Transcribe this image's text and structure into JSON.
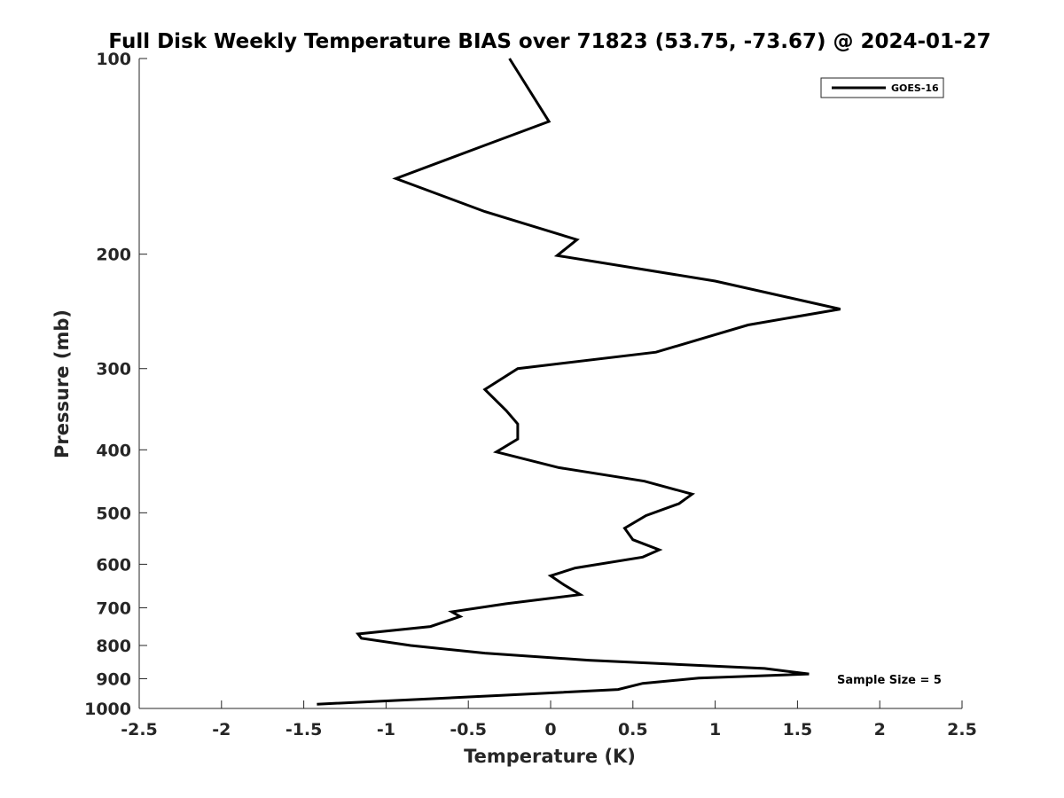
{
  "chart_data": {
    "type": "line",
    "title": "Full Disk Weekly Temperature BIAS over 71823 (53.75, -73.67) @ 2024-01-27",
    "xlabel": "Temperature (K)",
    "ylabel": "Pressure (mb)",
    "xlim": [
      -2.5,
      2.5
    ],
    "ylim": [
      100,
      1000
    ],
    "y_scale": "log",
    "y_reversed": true,
    "grid": false,
    "xticks": [
      -2.5,
      -2,
      -1.5,
      -1,
      -0.5,
      0,
      0.5,
      1,
      1.5,
      2,
      2.5
    ],
    "xtick_labels": [
      "-2.5",
      "-2",
      "-1.5",
      "-1",
      "-0.5",
      "0",
      "0.5",
      "1",
      "1.5",
      "2",
      "2.5"
    ],
    "yticks": [
      100,
      200,
      300,
      400,
      500,
      600,
      700,
      800,
      900,
      1000
    ],
    "ytick_labels": [
      "100",
      "200",
      "300",
      "400",
      "500",
      "600",
      "700",
      "800",
      "900",
      "1000"
    ],
    "legend_position": "top-right",
    "series": [
      {
        "name": "GOES-16",
        "color": "#000000",
        "points": [
          {
            "t": -0.25,
            "p": 100
          },
          {
            "t": -0.01,
            "p": 125
          },
          {
            "t": -0.4,
            "p": 136
          },
          {
            "t": -0.94,
            "p": 153
          },
          {
            "t": -0.4,
            "p": 172
          },
          {
            "t": 0.16,
            "p": 190
          },
          {
            "t": 0.04,
            "p": 201
          },
          {
            "t": 1.0,
            "p": 220
          },
          {
            "t": 1.76,
            "p": 243
          },
          {
            "t": 1.2,
            "p": 257
          },
          {
            "t": 0.64,
            "p": 283
          },
          {
            "t": -0.2,
            "p": 300
          },
          {
            "t": -0.4,
            "p": 323
          },
          {
            "t": -0.27,
            "p": 348
          },
          {
            "t": -0.2,
            "p": 365
          },
          {
            "t": -0.2,
            "p": 385
          },
          {
            "t": -0.33,
            "p": 403
          },
          {
            "t": 0.05,
            "p": 426
          },
          {
            "t": 0.57,
            "p": 447
          },
          {
            "t": 0.86,
            "p": 468
          },
          {
            "t": 0.78,
            "p": 484
          },
          {
            "t": 0.58,
            "p": 505
          },
          {
            "t": 0.45,
            "p": 528
          },
          {
            "t": 0.5,
            "p": 550
          },
          {
            "t": 0.66,
            "p": 570
          },
          {
            "t": 0.56,
            "p": 585
          },
          {
            "t": 0.15,
            "p": 608
          },
          {
            "t": 0.0,
            "p": 625
          },
          {
            "t": 0.08,
            "p": 645
          },
          {
            "t": 0.18,
            "p": 668
          },
          {
            "t": -0.27,
            "p": 690
          },
          {
            "t": -0.6,
            "p": 710
          },
          {
            "t": -0.55,
            "p": 722
          },
          {
            "t": -0.73,
            "p": 748
          },
          {
            "t": -1.17,
            "p": 768
          },
          {
            "t": -1.15,
            "p": 780
          },
          {
            "t": -0.85,
            "p": 800
          },
          {
            "t": -0.4,
            "p": 822
          },
          {
            "t": 0.23,
            "p": 843
          },
          {
            "t": 1.3,
            "p": 868
          },
          {
            "t": 1.57,
            "p": 885
          },
          {
            "t": 0.9,
            "p": 898
          },
          {
            "t": 0.56,
            "p": 915
          },
          {
            "t": 0.41,
            "p": 935
          },
          {
            "t": -0.3,
            "p": 955
          },
          {
            "t": -1.42,
            "p": 985
          }
        ]
      }
    ],
    "annotations": [
      {
        "text": "Sample Size = 5",
        "position": "bottom-right"
      }
    ]
  }
}
